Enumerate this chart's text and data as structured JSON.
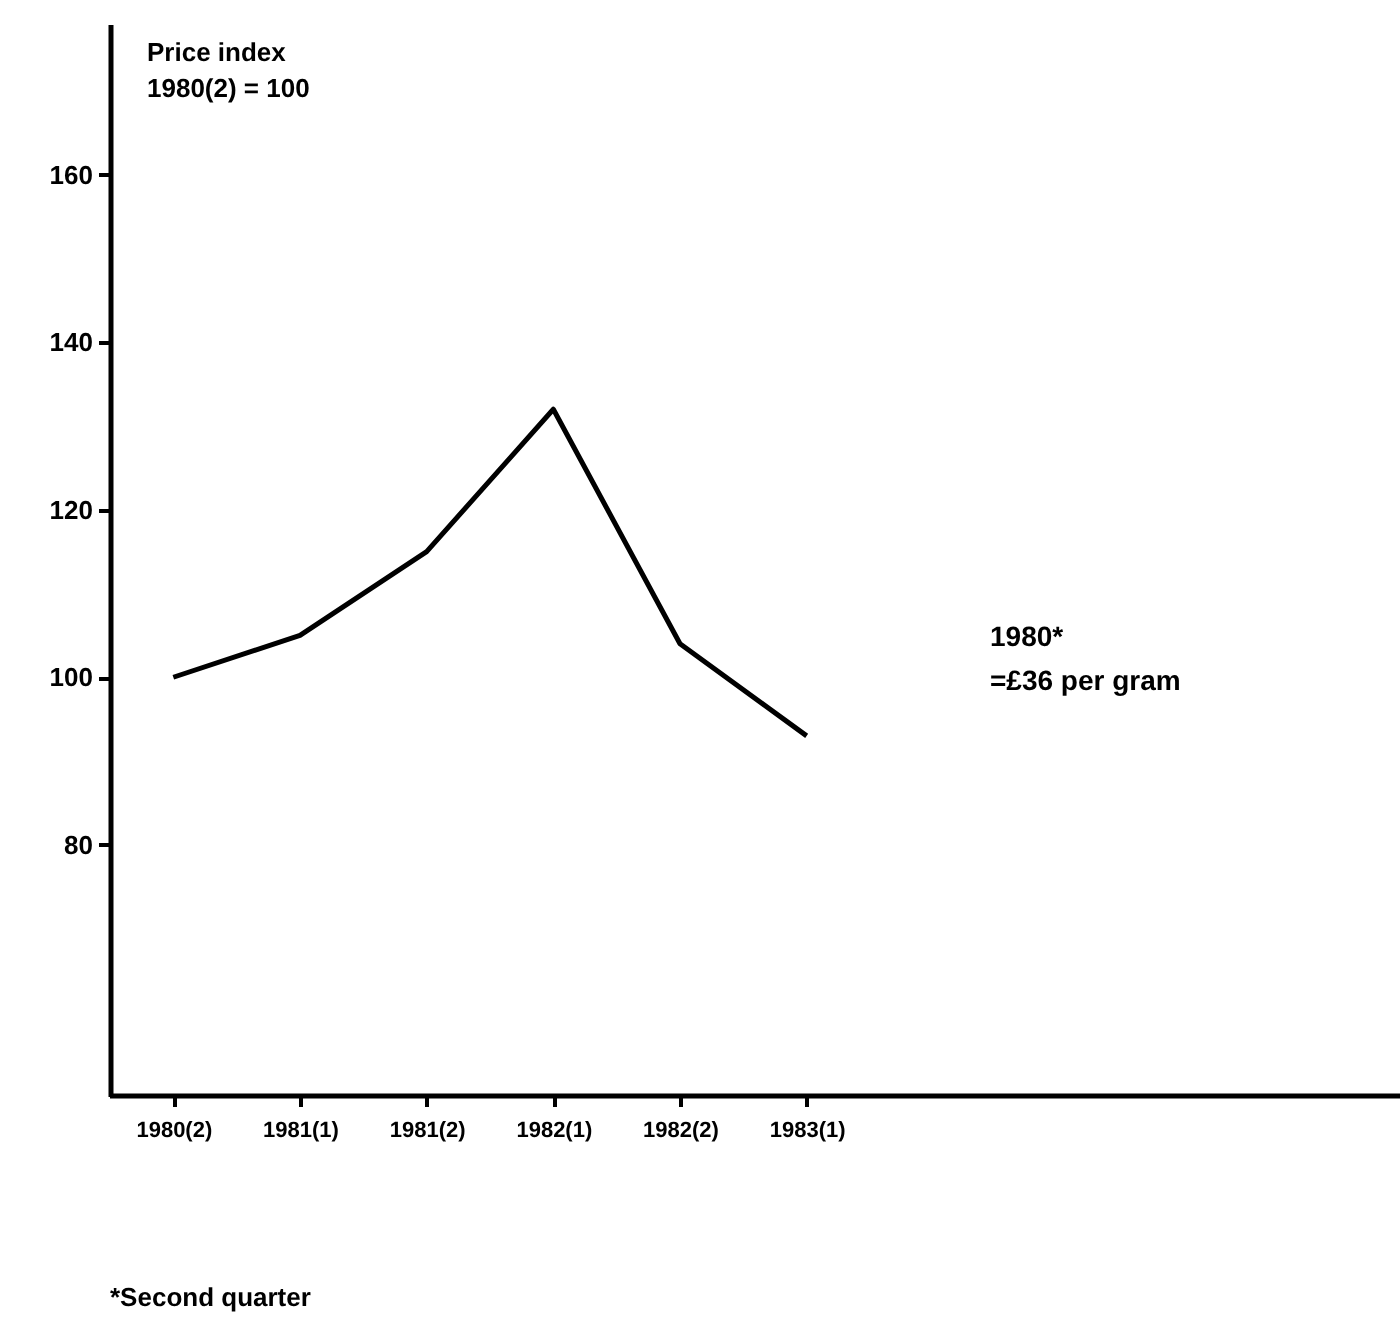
{
  "chart_data": {
    "type": "line",
    "ylabel": "Price index\n1980(2) = 100",
    "categories": [
      "1980(2)",
      "1981(1)",
      "1981(2)",
      "1982(1)",
      "1982(2)",
      "1983(1)"
    ],
    "series": [
      {
        "color": "#000000",
        "values": [
          100,
          105,
          115,
          132,
          104,
          93
        ]
      }
    ],
    "ylim": [
      50,
      178
    ],
    "yticks": [
      80,
      100,
      120,
      140,
      160
    ],
    "grid": false,
    "legend": false,
    "marker": "none",
    "line_style": "solid",
    "annotations": [
      "1980*\n=£36 per gram",
      "*Second quarter"
    ]
  }
}
